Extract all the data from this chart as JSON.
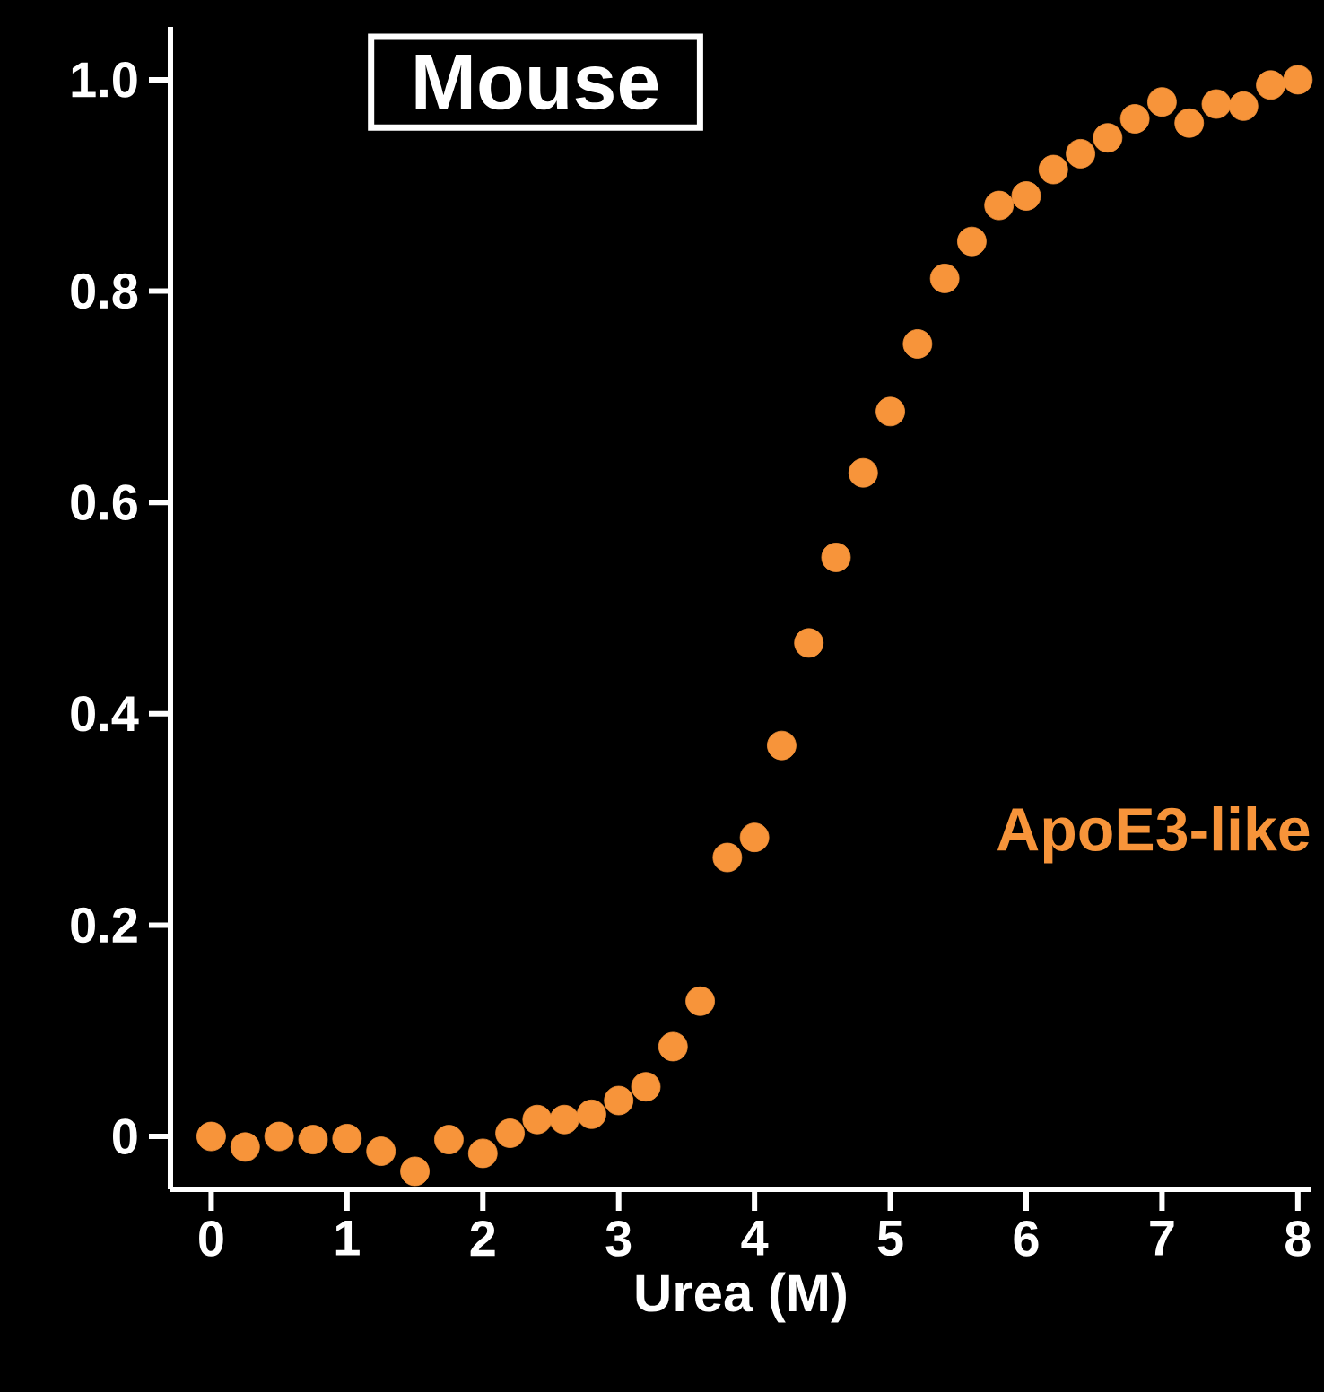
{
  "chart_data": {
    "type": "scatter",
    "title": "Mouse",
    "xlabel": "Urea (M)",
    "xlim": [
      -0.3,
      8.1
    ],
    "ylim": [
      -0.05,
      1.05
    ],
    "xticks": [
      0,
      1,
      2,
      3,
      4,
      5,
      6,
      7,
      8
    ],
    "yticks": [
      0,
      {
        "value": 0.2,
        "label": "0.2"
      },
      {
        "value": 0.4,
        "label": "0.4"
      },
      {
        "value": 0.6,
        "label": "0.6"
      },
      {
        "value": 0.8,
        "label": "0.8"
      },
      {
        "value": 1,
        "label": "1.0"
      }
    ],
    "marker": "circle",
    "grid": false,
    "series": [
      {
        "name": "ApoE3-like",
        "color": "#f7943a",
        "x": [
          0,
          0.25,
          0.5,
          0.75,
          1,
          1.25,
          1.5,
          1.75,
          2,
          2.2,
          2.4,
          2.6,
          2.8,
          3,
          3.2,
          3.4,
          3.6,
          3.8,
          4,
          4.2,
          4.4,
          4.6,
          4.8,
          5,
          5.2,
          5.4,
          5.6,
          5.8,
          6,
          6.2,
          6.4,
          6.6,
          6.8,
          7,
          7.2,
          7.4,
          7.6,
          7.8,
          8
        ],
        "values": [
          0,
          -0.01,
          0,
          -0.003,
          -0.002,
          -0.014,
          -0.033,
          -0.003,
          -0.016,
          0.003,
          0.016,
          0.016,
          0.021,
          0.034,
          0.047,
          0.085,
          0.128,
          0.264,
          0.283,
          0.37,
          0.467,
          0.548,
          0.628,
          0.686,
          0.75,
          0.812,
          0.847,
          0.881,
          0.89,
          0.915,
          0.93,
          0.945,
          0.963,
          0.979,
          0.959,
          0.977,
          0.975,
          0.995,
          1.0
        ]
      }
    ]
  }
}
